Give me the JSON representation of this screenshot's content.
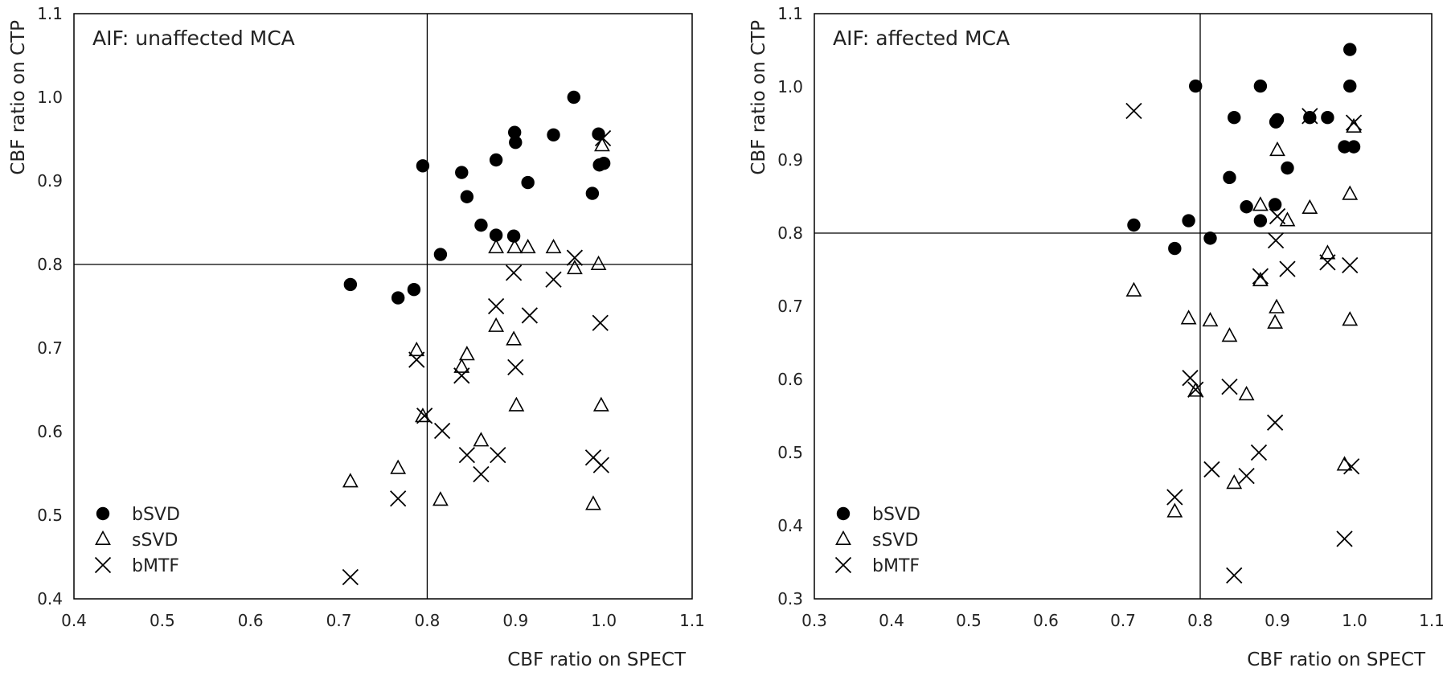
{
  "chart_data": [
    {
      "type": "scatter",
      "panel_label": "AIF: unaffected MCA",
      "xlabel": "CBF ratio on SPECT",
      "ylabel": "CBF ratio on CTP",
      "xlim": [
        0.4,
        1.1
      ],
      "ylim": [
        0.4,
        1.1
      ],
      "xticks": [
        "0.4",
        "0.5",
        "0.6",
        "0.7",
        "0.8",
        "0.9",
        "1.0",
        "1.1"
      ],
      "yticks": [
        "0.4",
        "0.5",
        "0.6",
        "0.7",
        "0.8",
        "0.9",
        "1.0",
        "1.1"
      ],
      "reference_lines": {
        "x": 0.8,
        "y": 0.8
      },
      "legend_position": "bottom-left",
      "grid": false,
      "series": [
        {
          "name": "bSVD",
          "marker": "filled-circle",
          "points": [
            [
              0.713,
              0.776
            ],
            [
              0.767,
              0.76
            ],
            [
              0.785,
              0.77
            ],
            [
              0.795,
              0.918
            ],
            [
              0.815,
              0.812
            ],
            [
              0.839,
              0.91
            ],
            [
              0.845,
              0.881
            ],
            [
              0.861,
              0.847
            ],
            [
              0.878,
              0.925
            ],
            [
              0.878,
              0.835
            ],
            [
              0.898,
              0.834
            ],
            [
              0.899,
              0.958
            ],
            [
              0.9,
              0.946
            ],
            [
              0.914,
              0.898
            ],
            [
              0.943,
              0.955
            ],
            [
              0.966,
              1.0
            ],
            [
              0.987,
              0.885
            ],
            [
              0.994,
              0.956
            ],
            [
              0.995,
              0.919
            ],
            [
              1.0,
              0.921
            ]
          ]
        },
        {
          "name": "sSVD",
          "marker": "open-triangle",
          "points": [
            [
              0.713,
              0.54
            ],
            [
              0.767,
              0.556
            ],
            [
              0.788,
              0.697
            ],
            [
              0.795,
              0.618
            ],
            [
              0.815,
              0.518
            ],
            [
              0.839,
              0.677
            ],
            [
              0.845,
              0.692
            ],
            [
              0.861,
              0.589
            ],
            [
              0.878,
              0.726
            ],
            [
              0.878,
              0.82
            ],
            [
              0.898,
              0.71
            ],
            [
              0.899,
              0.82
            ],
            [
              0.901,
              0.631
            ],
            [
              0.914,
              0.82
            ],
            [
              0.943,
              0.82
            ],
            [
              0.967,
              0.795
            ],
            [
              0.988,
              0.513
            ],
            [
              0.994,
              0.8
            ],
            [
              0.997,
              0.631
            ],
            [
              0.998,
              0.942
            ]
          ]
        },
        {
          "name": "bMTF",
          "marker": "cross",
          "points": [
            [
              0.713,
              0.426
            ],
            [
              0.767,
              0.52
            ],
            [
              0.788,
              0.686
            ],
            [
              0.797,
              0.619
            ],
            [
              0.817,
              0.601
            ],
            [
              0.839,
              0.667
            ],
            [
              0.845,
              0.572
            ],
            [
              0.861,
              0.549
            ],
            [
              0.878,
              0.75
            ],
            [
              0.88,
              0.572
            ],
            [
              0.898,
              0.79
            ],
            [
              0.9,
              0.677
            ],
            [
              0.916,
              0.739
            ],
            [
              0.943,
              0.782
            ],
            [
              0.967,
              0.808
            ],
            [
              0.988,
              0.569
            ],
            [
              0.996,
              0.73
            ],
            [
              0.997,
              0.56
            ],
            [
              0.999,
              0.951
            ]
          ]
        }
      ]
    },
    {
      "type": "scatter",
      "panel_label": "AIF: affected MCA",
      "xlabel": "CBF ratio on SPECT",
      "ylabel": "CBF ratio on CTP",
      "xlim": [
        0.3,
        1.1
      ],
      "ylim": [
        0.3,
        1.1
      ],
      "xticks": [
        "0.3",
        "0.4",
        "0.5",
        "0.6",
        "0.7",
        "0.8",
        "0.9",
        "1.0",
        "1.1"
      ],
      "yticks": [
        "0.3",
        "0.4",
        "0.5",
        "0.6",
        "0.7",
        "0.8",
        "0.9",
        "1.0",
        "1.1"
      ],
      "reference_lines": {
        "x": 0.8,
        "y": 0.8
      },
      "legend_position": "bottom-left",
      "grid": false,
      "series": [
        {
          "name": "bSVD",
          "marker": "filled-circle",
          "points": [
            [
              0.714,
              0.811
            ],
            [
              0.767,
              0.779
            ],
            [
              0.785,
              0.817
            ],
            [
              0.794,
              1.001
            ],
            [
              0.813,
              0.793
            ],
            [
              0.838,
              0.876
            ],
            [
              0.844,
              0.958
            ],
            [
              0.86,
              0.836
            ],
            [
              0.878,
              0.817
            ],
            [
              0.878,
              1.001
            ],
            [
              0.897,
              0.839
            ],
            [
              0.898,
              0.952
            ],
            [
              0.9,
              0.955
            ],
            [
              0.913,
              0.889
            ],
            [
              0.942,
              0.958
            ],
            [
              0.965,
              0.958
            ],
            [
              0.987,
              0.918
            ],
            [
              0.994,
              1.051
            ],
            [
              0.994,
              1.001
            ],
            [
              0.999,
              0.918
            ]
          ]
        },
        {
          "name": "sSVD",
          "marker": "open-triangle",
          "points": [
            [
              0.714,
              0.721
            ],
            [
              0.767,
              0.419
            ],
            [
              0.785,
              0.683
            ],
            [
              0.794,
              0.584
            ],
            [
              0.813,
              0.68
            ],
            [
              0.838,
              0.659
            ],
            [
              0.844,
              0.458
            ],
            [
              0.86,
              0.579
            ],
            [
              0.878,
              0.735
            ],
            [
              0.878,
              0.838
            ],
            [
              0.897,
              0.677
            ],
            [
              0.899,
              0.698
            ],
            [
              0.9,
              0.913
            ],
            [
              0.913,
              0.817
            ],
            [
              0.942,
              0.834
            ],
            [
              0.965,
              0.772
            ],
            [
              0.987,
              0.483
            ],
            [
              0.994,
              0.853
            ],
            [
              0.994,
              0.681
            ],
            [
              0.999,
              0.945
            ]
          ]
        },
        {
          "name": "bMTF",
          "marker": "cross",
          "points": [
            [
              0.714,
              0.967
            ],
            [
              0.767,
              0.439
            ],
            [
              0.787,
              0.602
            ],
            [
              0.794,
              0.586
            ],
            [
              0.815,
              0.477
            ],
            [
              0.838,
              0.59
            ],
            [
              0.844,
              0.332
            ],
            [
              0.86,
              0.468
            ],
            [
              0.876,
              0.5
            ],
            [
              0.878,
              0.741
            ],
            [
              0.897,
              0.541
            ],
            [
              0.898,
              0.79
            ],
            [
              0.9,
              0.823
            ],
            [
              0.913,
              0.751
            ],
            [
              0.942,
              0.96
            ],
            [
              0.965,
              0.76
            ],
            [
              0.987,
              0.382
            ],
            [
              0.994,
              0.756
            ],
            [
              0.996,
              0.481
            ],
            [
              0.999,
              0.951
            ]
          ]
        }
      ]
    }
  ]
}
